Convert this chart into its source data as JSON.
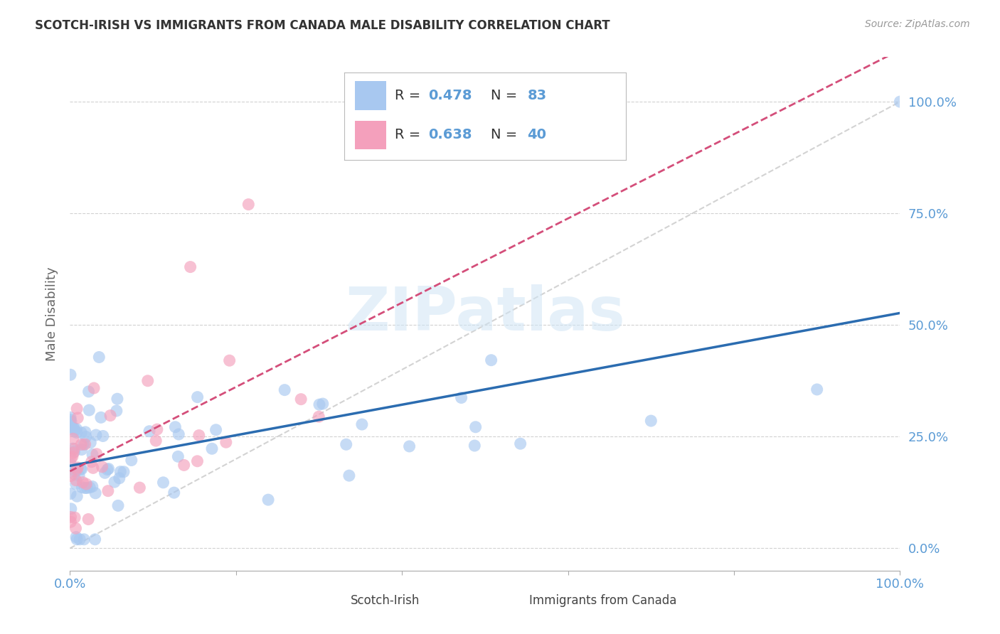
{
  "title": "SCOTCH-IRISH VS IMMIGRANTS FROM CANADA MALE DISABILITY CORRELATION CHART",
  "source": "Source: ZipAtlas.com",
  "ylabel": "Male Disability",
  "series1_name": "Scotch-Irish",
  "series1_color": "#A8C8F0",
  "series1_R": 0.478,
  "series1_N": 83,
  "series1_line_color": "#2B6CB0",
  "series2_name": "Immigrants from Canada",
  "series2_color": "#F4A0BC",
  "series2_R": 0.638,
  "series2_N": 40,
  "series2_line_color": "#D44E7A",
  "watermark": "ZIPatlas",
  "background_color": "#FFFFFF",
  "grid_color": "#CCCCCC",
  "axis_label_color": "#5B9BD5",
  "title_color": "#333333",
  "yticks": [
    0.0,
    0.25,
    0.5,
    0.75,
    1.0
  ],
  "ytick_labels": [
    "0.0%",
    "25.0%",
    "50.0%",
    "75.0%",
    "100.0%"
  ],
  "xtick_labels": [
    "0.0%",
    "100.0%"
  ],
  "xrange": [
    0.0,
    1.0
  ],
  "yrange": [
    -0.05,
    1.1
  ]
}
